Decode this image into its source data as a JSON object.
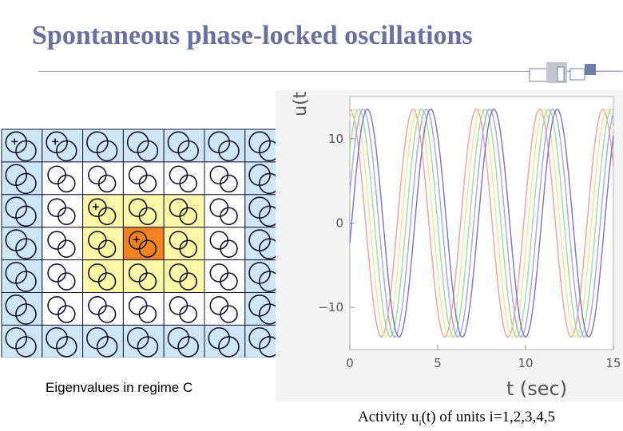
{
  "title": "Spontaneous phase-locked oscillations",
  "eigen_grid": {
    "caption": "Eigenvalues in regime C",
    "rows": 7,
    "cols": 7,
    "cell_colors": [
      [
        "#cfe6f7",
        "#cfe6f7",
        "#cfe6f7",
        "#cfe6f7",
        "#cfe6f7",
        "#cfe6f7",
        "#cfe6f7"
      ],
      [
        "#cfe6f7",
        "#ffffff",
        "#ffffff",
        "#ffffff",
        "#ffffff",
        "#ffffff",
        "#cfe6f7"
      ],
      [
        "#cfe6f7",
        "#ffffff",
        "#fdf7a8",
        "#fdf7a8",
        "#fdf7a8",
        "#ffffff",
        "#cfe6f7"
      ],
      [
        "#cfe6f7",
        "#ffffff",
        "#fdf7a8",
        "#f58220",
        "#fdf7a8",
        "#ffffff",
        "#cfe6f7"
      ],
      [
        "#cfe6f7",
        "#ffffff",
        "#fdf7a8",
        "#fdf7a8",
        "#fdf7a8",
        "#ffffff",
        "#cfe6f7"
      ],
      [
        "#cfe6f7",
        "#ffffff",
        "#ffffff",
        "#ffffff",
        "#ffffff",
        "#ffffff",
        "#cfe6f7"
      ],
      [
        "#cfe6f7",
        "#cfe6f7",
        "#cfe6f7",
        "#cfe6f7",
        "#cfe6f7",
        "#cfe6f7",
        "#cfe6f7"
      ]
    ],
    "plus_cells": [
      [
        0,
        0
      ],
      [
        0,
        1
      ],
      [
        2,
        2
      ],
      [
        3,
        3
      ]
    ]
  },
  "chart_data": {
    "type": "line",
    "xlabel": "t (sec)",
    "ylabel": "u(t)",
    "xlim": [
      0,
      15
    ],
    "ylim": [
      -15,
      15
    ],
    "xticks": [
      "0",
      "5",
      "10",
      "15"
    ],
    "yticks": [
      "10",
      "0",
      "−10"
    ],
    "amplitude": 13.5,
    "period_sec": 3.6,
    "series": [
      {
        "color": "#f2a3a3",
        "phase_sec": 0.0
      },
      {
        "color": "#e8e89a",
        "phase_sec": 0.25
      },
      {
        "color": "#a5dba5",
        "phase_sec": 0.5
      },
      {
        "color": "#a8a8ee",
        "phase_sec": 0.75
      },
      {
        "color": "#7d7dc0",
        "phase_sec": 1.0
      }
    ]
  },
  "activity_caption": {
    "prefix": "Activity u",
    "subscript": "i",
    "suffix": "(t) of units i=1,2,3,4,5"
  }
}
